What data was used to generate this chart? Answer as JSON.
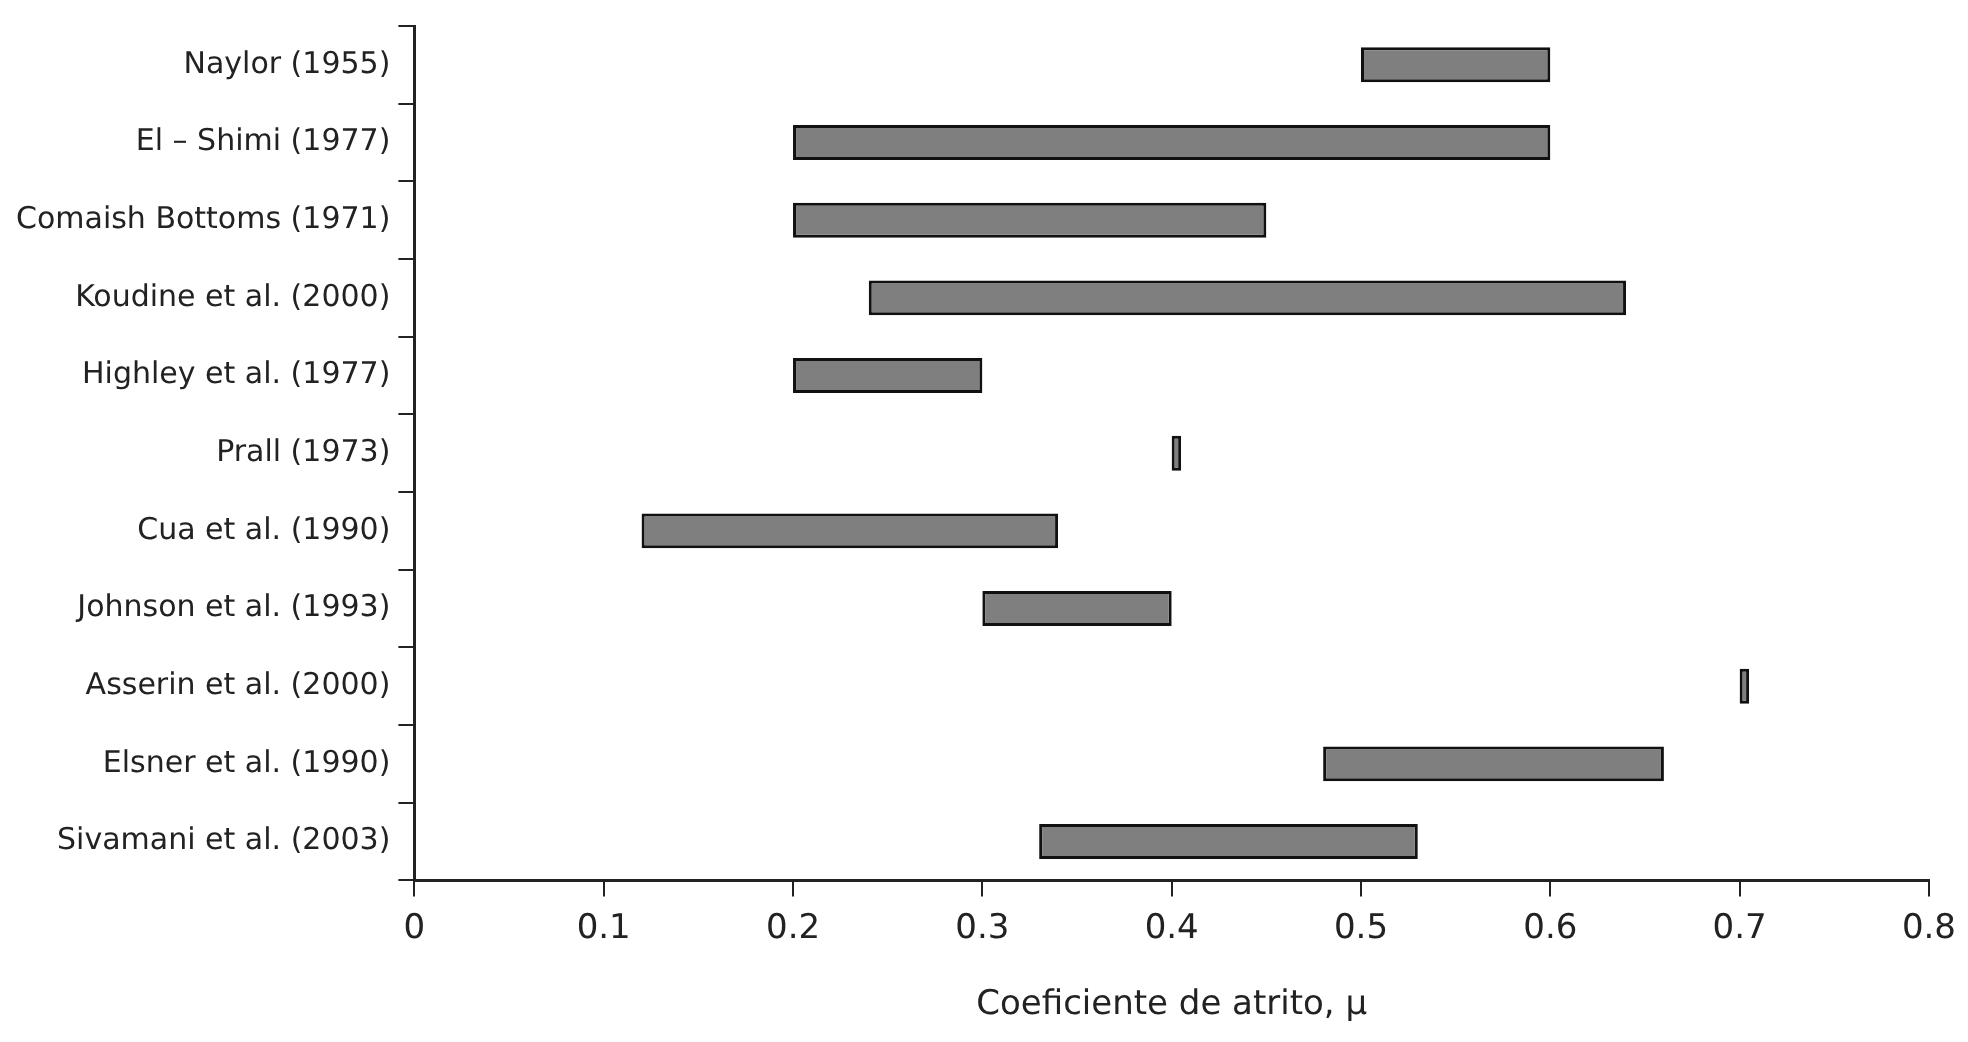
{
  "chart_data": {
    "type": "bar",
    "orientation": "horizontal",
    "xlabel": "Coeficiente de atrito, μ",
    "categories": [
      "Naylor (1955)",
      "El – Shimi (1977)",
      "Comaish Bottoms (1971)",
      "Koudine et al. (2000)",
      "Highley et al. (1977)",
      "Prall (1973)",
      "Cua et al. (1990)",
      "Johnson et al. (1993)",
      "Asserin et al. (2000)",
      "Elsner et al. (1990)",
      "Sivamani et al. (2003)"
    ],
    "base": [
      0.5,
      0.2,
      0.2,
      0.24,
      0.2,
      0.4,
      0.12,
      0.3,
      0.7,
      0.48,
      0.33
    ],
    "values": [
      0.1,
      0.4,
      0.25,
      0.4,
      0.1,
      0.005,
      0.22,
      0.1,
      0.005,
      0.18,
      0.2
    ],
    "color": "#7f7f7f",
    "xlim": [
      0,
      0.8
    ],
    "xticks": [
      0,
      0.1,
      0.2,
      0.3,
      0.4,
      0.5,
      0.6,
      0.7,
      0.8
    ],
    "grid": false,
    "legend": false
  }
}
